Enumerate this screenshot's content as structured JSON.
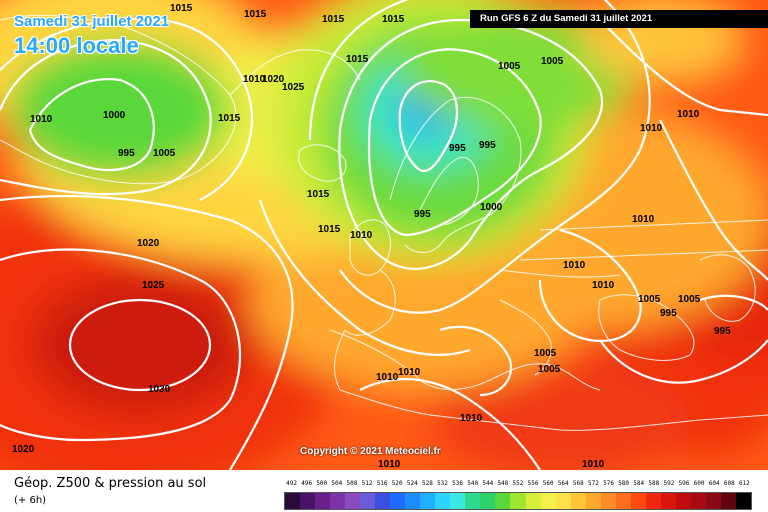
{
  "header": {
    "date": "Samedi 31 juillet 2021",
    "time": "14:00 locale",
    "run": "Run GFS 6 Z du Samedi 31 juillet 2021"
  },
  "copyright": "Copyright © 2021 Meteociel.fr",
  "footer": {
    "title": "Géop. Z500 & pression au sol",
    "subtitle": "(+ 6h)"
  },
  "legend": {
    "values": [
      "492",
      "496",
      "500",
      "504",
      "508",
      "512",
      "516",
      "520",
      "524",
      "528",
      "532",
      "536",
      "540",
      "544",
      "548",
      "552",
      "556",
      "560",
      "564",
      "568",
      "572",
      "576",
      "580",
      "584",
      "588",
      "592",
      "596",
      "600",
      "604",
      "608",
      "612"
    ],
    "colors": [
      "#2b0a3d",
      "#4a1466",
      "#6a1f8a",
      "#7e34a8",
      "#8b4bc0",
      "#6b5bd6",
      "#3a4ee0",
      "#1f6bff",
      "#1e8cff",
      "#20b0ff",
      "#2ed3ff",
      "#3de8e0",
      "#30d890",
      "#2fd26a",
      "#5ad83a",
      "#9ee630",
      "#d6ef3a",
      "#f5f04a",
      "#ffe14a",
      "#ffc43a",
      "#ffa82f",
      "#ff8c26",
      "#ff6e1e",
      "#ff4a14",
      "#f0280e",
      "#d8160c",
      "#c00c0c",
      "#a80a14",
      "#8a0818",
      "#600410",
      "#000000"
    ]
  },
  "isobars": [
    {
      "label": "1015",
      "pos": "nw-top"
    },
    {
      "label": "1015",
      "pos": "nw-top2"
    },
    {
      "label": "1015",
      "pos": "iceland-e"
    },
    {
      "label": "1015",
      "pos": "iceland-e2"
    },
    {
      "label": "1015",
      "pos": "norwegian-sea"
    },
    {
      "label": "1015",
      "pos": "atlantic-n"
    },
    {
      "label": "1015",
      "pos": "atlantic-mid"
    },
    {
      "label": "1015",
      "pos": "irish-sea"
    },
    {
      "label": "1010",
      "pos": "greenland-w"
    },
    {
      "label": "1010",
      "pos": "greenland-e"
    },
    {
      "label": "1010",
      "pos": "north-sea"
    },
    {
      "label": "1010",
      "pos": "russia-n"
    },
    {
      "label": "1010",
      "pos": "russia-n2"
    },
    {
      "label": "1010",
      "pos": "russia-c"
    },
    {
      "label": "1010",
      "pos": "ukraine"
    },
    {
      "label": "1010",
      "pos": "ukraine2"
    },
    {
      "label": "1010",
      "pos": "iberia"
    },
    {
      "label": "1010",
      "pos": "iberia2"
    },
    {
      "label": "1010",
      "pos": "med-w"
    },
    {
      "label": "1010",
      "pos": "nafrica"
    },
    {
      "label": "1010",
      "pos": "nafrica2"
    },
    {
      "label": "1005",
      "pos": "greenland-s"
    },
    {
      "label": "1005",
      "pos": "scandinavia-n"
    },
    {
      "label": "1005",
      "pos": "scandinavia-ne"
    },
    {
      "label": "1005",
      "pos": "black-sea"
    },
    {
      "label": "1005",
      "pos": "russia-s"
    },
    {
      "label": "1005",
      "pos": "balkans"
    },
    {
      "label": "1005",
      "pos": "aegean"
    },
    {
      "label": "1000",
      "pos": "greenland-low"
    },
    {
      "label": "1000",
      "pos": "baltic"
    },
    {
      "label": "995",
      "pos": "greenland-low2"
    },
    {
      "label": "995",
      "pos": "norway"
    },
    {
      "label": "995",
      "pos": "sweden"
    },
    {
      "label": "995",
      "pos": "bothnia"
    },
    {
      "label": "995",
      "pos": "caspian"
    },
    {
      "label": "995",
      "pos": "caspian2"
    },
    {
      "label": "1020",
      "pos": "atlantic-ne"
    },
    {
      "label": "1020",
      "pos": "atlantic-w"
    },
    {
      "label": "1020",
      "pos": "atlantic-sw"
    },
    {
      "label": "1025",
      "pos": "iceland-n"
    },
    {
      "label": "1025",
      "pos": "azores-n"
    },
    {
      "label": "1030",
      "pos": "azores"
    }
  ]
}
